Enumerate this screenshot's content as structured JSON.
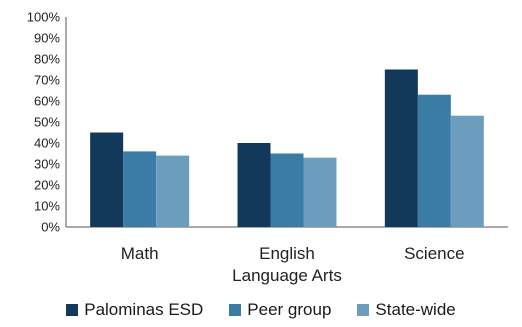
{
  "chart_data": {
    "type": "bar",
    "categories": [
      "Math",
      "English Language Arts",
      "Science"
    ],
    "category_lines": [
      [
        "Math"
      ],
      [
        "English",
        "Language Arts"
      ],
      [
        "Science"
      ]
    ],
    "series": [
      {
        "name": "Palominas ESD",
        "values": [
          45,
          40,
          75
        ],
        "color": "#12385a"
      },
      {
        "name": "Peer group",
        "values": [
          36,
          35,
          63
        ],
        "color": "#3a7ca5"
      },
      {
        "name": "State-wide",
        "values": [
          34,
          33,
          53
        ],
        "color": "#6d9dbd"
      }
    ],
    "ylim": [
      0,
      100
    ],
    "yticks": [
      "0%",
      "10%",
      "20%",
      "30%",
      "40%",
      "50%",
      "60%",
      "70%",
      "80%",
      "90%",
      "100%"
    ],
    "grid": false,
    "legend_position": "bottom"
  }
}
